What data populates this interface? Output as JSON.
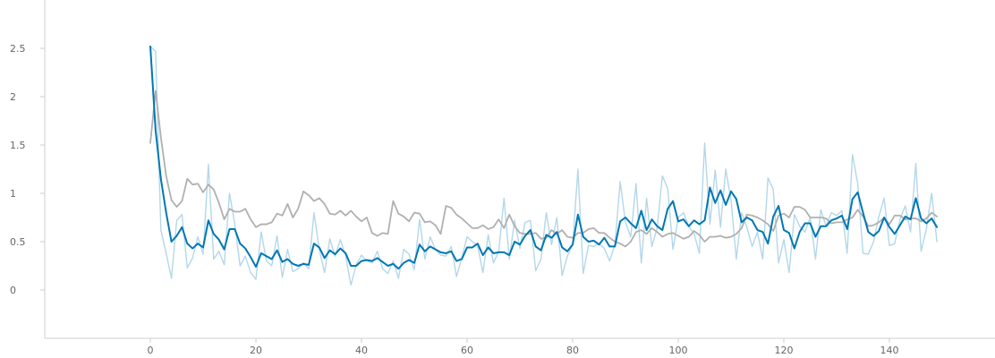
{
  "chart_data": {
    "type": "line",
    "title": "",
    "xlabel": "",
    "ylabel": "",
    "xlim": [
      -20,
      160
    ],
    "ylim": [
      -0.5,
      3.0
    ],
    "x_ticks": [
      0,
      20,
      40,
      60,
      80,
      100,
      120,
      140
    ],
    "x_tick_labels": [
      "0",
      "20",
      "40",
      "60",
      "80",
      "100",
      "120",
      "140"
    ],
    "y_ticks": [
      0,
      0.5,
      1,
      1.5,
      2,
      2.5
    ],
    "y_tick_labels": [
      "0",
      "0.5",
      "1",
      "1.5",
      "2",
      "2.5"
    ],
    "grid": false,
    "legend": "none",
    "x": [
      0,
      1,
      2,
      3,
      4,
      5,
      6,
      7,
      8,
      9,
      10,
      11,
      12,
      13,
      14,
      15,
      16,
      17,
      18,
      19,
      20,
      21,
      22,
      23,
      24,
      25,
      26,
      27,
      28,
      29,
      30,
      31,
      32,
      33,
      34,
      35,
      36,
      37,
      38,
      39,
      40,
      41,
      42,
      43,
      44,
      45,
      46,
      47,
      48,
      49,
      50,
      51,
      52,
      53,
      54,
      55,
      56,
      57,
      58,
      59,
      60,
      61,
      62,
      63,
      64,
      65,
      66,
      67,
      68,
      69,
      70,
      71,
      72,
      73,
      74,
      75,
      76,
      77,
      78,
      79,
      80,
      81,
      82,
      83,
      84,
      85,
      86,
      87,
      88,
      89,
      90,
      91,
      92,
      93,
      94,
      95,
      96,
      97,
      98,
      99,
      100,
      101,
      102,
      103,
      104,
      105,
      106,
      107,
      108,
      109,
      110,
      111,
      112,
      113,
      114,
      115,
      116,
      117,
      118,
      119,
      120,
      121,
      122,
      123,
      124,
      125,
      126,
      127,
      128,
      129,
      130,
      131,
      132,
      133,
      134,
      135,
      136,
      137,
      138,
      139,
      140,
      141,
      142,
      143,
      144,
      145,
      146,
      147,
      148,
      149
    ],
    "series": [
      {
        "role": "raw",
        "color": "#b3d7ea",
        "values": [
          2.52,
          2.47,
          0.62,
          0.38,
          0.12,
          0.72,
          0.78,
          0.23,
          0.33,
          0.55,
          0.37,
          1.3,
          0.32,
          0.4,
          0.26,
          1.0,
          0.68,
          0.25,
          0.35,
          0.18,
          0.11,
          0.6,
          0.3,
          0.25,
          0.56,
          0.13,
          0.42,
          0.19,
          0.22,
          0.28,
          0.22,
          0.8,
          0.42,
          0.18,
          0.53,
          0.35,
          0.52,
          0.35,
          0.05,
          0.26,
          0.36,
          0.3,
          0.28,
          0.4,
          0.22,
          0.17,
          0.3,
          0.12,
          0.42,
          0.37,
          0.21,
          0.73,
          0.32,
          0.55,
          0.42,
          0.36,
          0.35,
          0.45,
          0.14,
          0.33,
          0.55,
          0.5,
          0.46,
          0.18,
          0.57,
          0.28,
          0.4,
          0.95,
          0.32,
          0.72,
          0.43,
          0.7,
          0.72,
          0.2,
          0.32,
          0.8,
          0.47,
          0.75,
          0.15,
          0.35,
          0.47,
          1.25,
          0.17,
          0.46,
          0.45,
          0.48,
          0.43,
          0.3,
          0.47,
          1.12,
          0.7,
          0.55,
          1.1,
          0.28,
          0.95,
          0.45,
          0.64,
          1.18,
          1.05,
          0.42,
          0.75,
          0.8,
          0.66,
          0.58,
          0.38,
          1.52,
          0.68,
          1.24,
          0.65,
          1.25,
          0.93,
          0.32,
          0.8,
          0.65,
          0.45,
          0.6,
          0.32,
          1.16,
          1.04,
          0.28,
          0.52,
          0.18,
          0.78,
          0.66,
          0.6,
          0.75,
          0.32,
          0.83,
          0.66,
          0.8,
          0.77,
          0.82,
          0.38,
          1.4,
          1.1,
          0.38,
          0.37,
          0.5,
          0.76,
          0.95,
          0.46,
          0.48,
          0.73,
          0.87,
          0.6,
          1.31,
          0.4,
          0.63,
          1.0,
          0.5
        ]
      },
      {
        "role": "smoothed-primary",
        "color": "#0077b3",
        "values": [
          2.52,
          1.65,
          1.15,
          0.8,
          0.5,
          0.56,
          0.65,
          0.48,
          0.43,
          0.48,
          0.44,
          0.72,
          0.58,
          0.52,
          0.42,
          0.63,
          0.63,
          0.48,
          0.43,
          0.34,
          0.24,
          0.38,
          0.35,
          0.32,
          0.41,
          0.29,
          0.32,
          0.27,
          0.25,
          0.27,
          0.26,
          0.48,
          0.44,
          0.33,
          0.41,
          0.37,
          0.43,
          0.38,
          0.25,
          0.25,
          0.3,
          0.31,
          0.3,
          0.33,
          0.29,
          0.25,
          0.27,
          0.22,
          0.28,
          0.31,
          0.28,
          0.47,
          0.4,
          0.45,
          0.42,
          0.39,
          0.38,
          0.4,
          0.3,
          0.32,
          0.44,
          0.44,
          0.48,
          0.36,
          0.44,
          0.38,
          0.39,
          0.39,
          0.36,
          0.5,
          0.47,
          0.56,
          0.62,
          0.45,
          0.41,
          0.57,
          0.54,
          0.6,
          0.44,
          0.4,
          0.47,
          0.78,
          0.55,
          0.5,
          0.51,
          0.47,
          0.54,
          0.45,
          0.45,
          0.71,
          0.75,
          0.69,
          0.64,
          0.82,
          0.62,
          0.73,
          0.66,
          0.62,
          0.84,
          0.92,
          0.71,
          0.73,
          0.66,
          0.72,
          0.68,
          0.72,
          1.06,
          0.9,
          1.03,
          0.88,
          1.02,
          0.94,
          0.7,
          0.75,
          0.72,
          0.62,
          0.6,
          0.48,
          0.76,
          0.87,
          0.62,
          0.59,
          0.43,
          0.6,
          0.69,
          0.69,
          0.55,
          0.66,
          0.66,
          0.72,
          0.74,
          0.77,
          0.63,
          0.94,
          1.01,
          0.8,
          0.6,
          0.56,
          0.61,
          0.75,
          0.65,
          0.58,
          0.67,
          0.76,
          0.73,
          0.95,
          0.74,
          0.69,
          0.74,
          0.65
        ]
      },
      {
        "role": "smoothed-secondary",
        "color": "#b0b0b0",
        "values": [
          1.52,
          2.06,
          1.58,
          1.18,
          0.93,
          0.86,
          0.92,
          1.15,
          1.09,
          1.1,
          1.01,
          1.09,
          1.04,
          0.9,
          0.73,
          0.84,
          0.81,
          0.81,
          0.84,
          0.73,
          0.65,
          0.68,
          0.68,
          0.7,
          0.79,
          0.77,
          0.89,
          0.75,
          0.84,
          1.02,
          0.98,
          0.92,
          0.95,
          0.89,
          0.79,
          0.78,
          0.82,
          0.77,
          0.82,
          0.76,
          0.71,
          0.75,
          0.59,
          0.56,
          0.59,
          0.58,
          0.92,
          0.79,
          0.76,
          0.71,
          0.8,
          0.79,
          0.7,
          0.71,
          0.67,
          0.58,
          0.87,
          0.85,
          0.78,
          0.74,
          0.69,
          0.64,
          0.64,
          0.67,
          0.63,
          0.65,
          0.73,
          0.64,
          0.78,
          0.66,
          0.59,
          0.58,
          0.58,
          0.59,
          0.53,
          0.54,
          0.62,
          0.58,
          0.62,
          0.55,
          0.54,
          0.59,
          0.59,
          0.63,
          0.64,
          0.59,
          0.59,
          0.54,
          0.5,
          0.48,
          0.45,
          0.5,
          0.6,
          0.62,
          0.58,
          0.64,
          0.6,
          0.55,
          0.58,
          0.59,
          0.56,
          0.53,
          0.55,
          0.61,
          0.57,
          0.5,
          0.55,
          0.55,
          0.56,
          0.54,
          0.55,
          0.58,
          0.64,
          0.78,
          0.77,
          0.75,
          0.72,
          0.68,
          0.61,
          0.77,
          0.79,
          0.75,
          0.86,
          0.86,
          0.83,
          0.75,
          0.75,
          0.75,
          0.74,
          0.69,
          0.7,
          0.7,
          0.73,
          0.75,
          0.83,
          0.76,
          0.66,
          0.67,
          0.7,
          0.75,
          0.68,
          0.77,
          0.77,
          0.73,
          0.74,
          0.74,
          0.71,
          0.74,
          0.8,
          0.76
        ]
      }
    ]
  }
}
